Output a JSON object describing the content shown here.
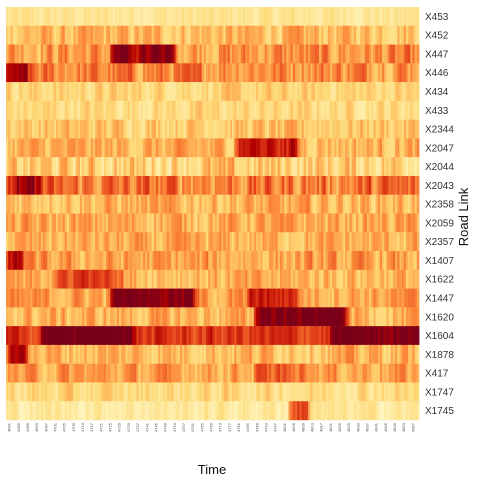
{
  "chart_data": {
    "type": "heatmap",
    "xlabel": "Time",
    "ylabel": "Road Link",
    "rows": [
      "X453",
      "X452",
      "X447",
      "X446",
      "X434",
      "X433",
      "X2344",
      "X2047",
      "X2044",
      "X2043",
      "X2358",
      "X2059",
      "X2357",
      "X1407",
      "X1622",
      "X1447",
      "X1620",
      "X1604",
      "X1878",
      "X417",
      "X1747",
      "X1745"
    ],
    "x_tick_labels": [
      "4681",
      "4685",
      "4689",
      "4693",
      "4697",
      "4701",
      "4705",
      "4709",
      "4713",
      "4717",
      "4721",
      "4725",
      "4729",
      "4733",
      "4737",
      "4741",
      "4745",
      "4749",
      "4753",
      "4757",
      "4761",
      "4765",
      "4769",
      "4773",
      "4777",
      "4781",
      "4785",
      "4789",
      "4793",
      "4797",
      "4801",
      "4805",
      "4809",
      "4813",
      "4817",
      "4821",
      "4825",
      "4829",
      "4833",
      "4837",
      "4841",
      "4845",
      "4849",
      "4853",
      "4857"
    ],
    "value_range": [
      0,
      1
    ],
    "palette": [
      "#fff7c4",
      "#fed976",
      "#fd8d3c",
      "#e3411a",
      "#b30000",
      "#7a0019"
    ],
    "row_profiles": [
      {
        "base": 0.12,
        "amp": 0.1,
        "hot": []
      },
      {
        "base": 0.28,
        "amp": 0.2,
        "hot": []
      },
      {
        "base": 0.38,
        "amp": 0.25,
        "hot": [
          [
            0.25,
            0.4,
            0.35
          ]
        ]
      },
      {
        "base": 0.42,
        "amp": 0.25,
        "hot": [
          [
            0.0,
            0.05,
            0.25
          ]
        ]
      },
      {
        "base": 0.2,
        "amp": 0.15,
        "hot": []
      },
      {
        "base": 0.18,
        "amp": 0.15,
        "hot": []
      },
      {
        "base": 0.25,
        "amp": 0.18,
        "hot": []
      },
      {
        "base": 0.3,
        "amp": 0.2,
        "hot": [
          [
            0.55,
            0.7,
            0.3
          ]
        ]
      },
      {
        "base": 0.22,
        "amp": 0.25,
        "hot": []
      },
      {
        "base": 0.45,
        "amp": 0.3,
        "hot": [
          [
            0.0,
            0.08,
            0.25
          ]
        ]
      },
      {
        "base": 0.3,
        "amp": 0.2,
        "hot": []
      },
      {
        "base": 0.32,
        "amp": 0.2,
        "hot": []
      },
      {
        "base": 0.3,
        "amp": 0.2,
        "hot": []
      },
      {
        "base": 0.33,
        "amp": 0.22,
        "hot": [
          [
            0.0,
            0.04,
            0.3
          ]
        ]
      },
      {
        "base": 0.3,
        "amp": 0.2,
        "hot": [
          [
            0.12,
            0.28,
            0.2
          ]
        ]
      },
      {
        "base": 0.35,
        "amp": 0.2,
        "hot": [
          [
            0.25,
            0.45,
            0.45
          ],
          [
            0.58,
            0.7,
            0.25
          ]
        ]
      },
      {
        "base": 0.3,
        "amp": 0.2,
        "hot": [
          [
            0.6,
            0.82,
            0.5
          ]
        ]
      },
      {
        "base": 0.62,
        "amp": 0.2,
        "hot": [
          [
            0.08,
            0.3,
            0.35
          ],
          [
            0.78,
            1.0,
            0.25
          ]
        ]
      },
      {
        "base": 0.3,
        "amp": 0.2,
        "hot": [
          [
            0.0,
            0.05,
            0.35
          ]
        ]
      },
      {
        "base": 0.35,
        "amp": 0.2,
        "hot": [
          [
            0.6,
            0.75,
            0.1
          ]
        ]
      },
      {
        "base": 0.18,
        "amp": 0.15,
        "hot": []
      },
      {
        "base": 0.1,
        "amp": 0.12,
        "hot": [
          [
            0.68,
            0.73,
            0.35
          ]
        ]
      }
    ]
  }
}
